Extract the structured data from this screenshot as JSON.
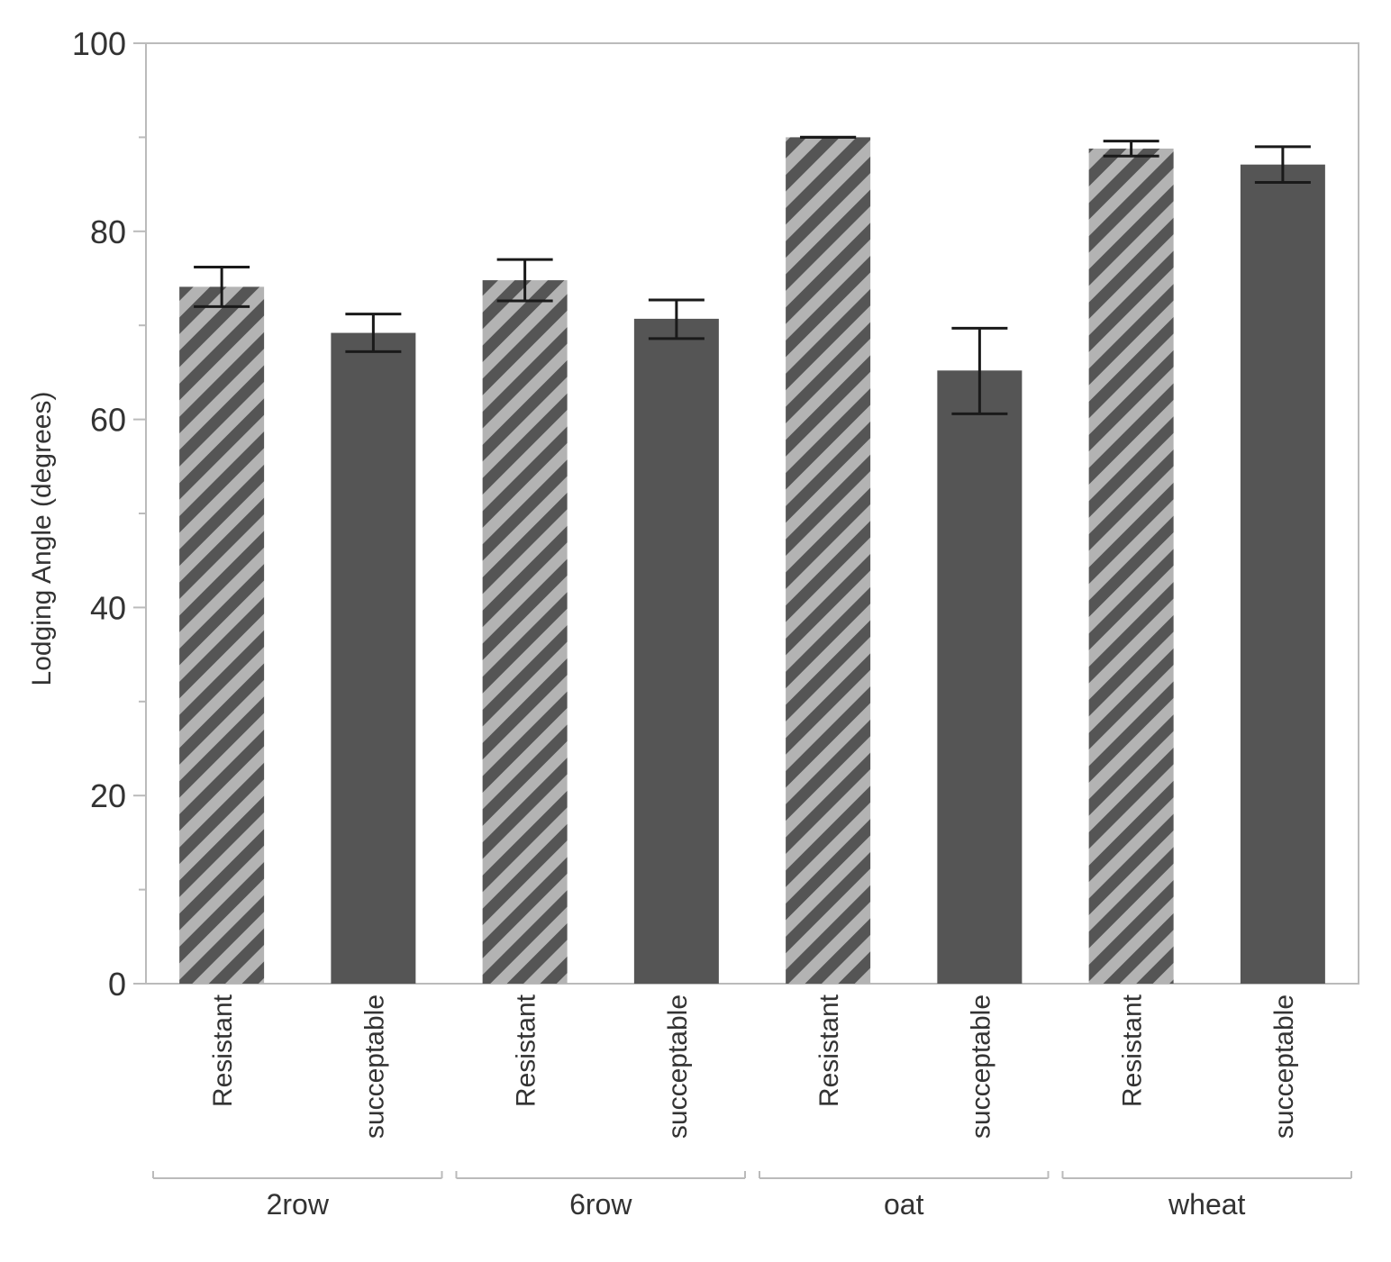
{
  "chart_data": {
    "type": "bar",
    "title": "",
    "xlabel": "",
    "ylabel": "Lodging Angle (degrees)",
    "ylim": [
      0,
      100
    ],
    "y_ticks": [
      0,
      20,
      40,
      60,
      80,
      100
    ],
    "y_tick_labels": [
      "0",
      "20",
      "40",
      "60",
      "80",
      "100"
    ],
    "grid": false,
    "legend": "none",
    "groups": [
      "2row",
      "6row",
      "oat",
      "wheat"
    ],
    "subcategories": [
      "Resistant",
      "succeptable"
    ],
    "series": [
      {
        "name": "Resistant",
        "pattern": "diagonal-hatch",
        "colors": {
          "stripe_light": "#b3b3b3",
          "stripe_dark": "#555555"
        },
        "values": [
          74.1,
          74.8,
          90.0,
          88.8
        ],
        "error_low": [
          72.0,
          72.6,
          90.0,
          88.0
        ],
        "error_high": [
          76.2,
          77.0,
          90.0,
          89.6
        ]
      },
      {
        "name": "succeptable",
        "pattern": "solid",
        "colors": {
          "fill": "#555555"
        },
        "values": [
          69.2,
          70.7,
          65.2,
          87.1
        ],
        "error_low": [
          67.2,
          68.6,
          60.6,
          85.2
        ],
        "error_high": [
          71.2,
          72.7,
          69.7,
          89.0
        ]
      }
    ],
    "colors": {
      "axis": "#bbbbbb",
      "error_bar": "#1a1a1a",
      "text": "#333333"
    }
  }
}
